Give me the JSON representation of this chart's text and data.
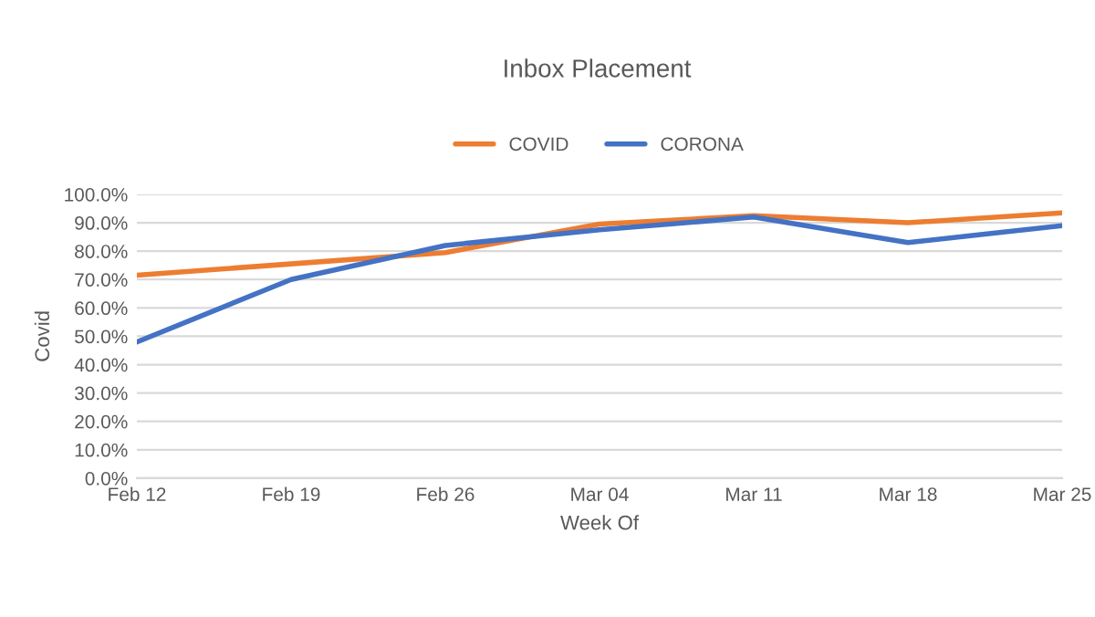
{
  "chart_data": {
    "type": "line",
    "title": "Inbox Placement",
    "xlabel": "Week Of",
    "ylabel": "Covid",
    "categories": [
      "Feb 12",
      "Feb 19",
      "Feb 26",
      "Mar 04",
      "Mar 11",
      "Mar 18",
      "Mar 25"
    ],
    "series": [
      {
        "name": "COVID",
        "color": "#ed7d31",
        "values": [
          71.5,
          75.5,
          79.5,
          89.5,
          92.5,
          90,
          93.5
        ]
      },
      {
        "name": "CORONA",
        "color": "#4472c4",
        "values": [
          48,
          70,
          82,
          87.5,
          92,
          83,
          89
        ]
      }
    ],
    "ylim": [
      0,
      100
    ],
    "yticks": [
      {
        "value": 0,
        "label": "0.0%"
      },
      {
        "value": 10,
        "label": "10.0%"
      },
      {
        "value": 20,
        "label": "20.0%"
      },
      {
        "value": 30,
        "label": "30.0%"
      },
      {
        "value": 40,
        "label": "40.0%"
      },
      {
        "value": 50,
        "label": "50.0%"
      },
      {
        "value": 60,
        "label": "60.0%"
      },
      {
        "value": 70,
        "label": "70.0%"
      },
      {
        "value": 80,
        "label": "80.0%"
      },
      {
        "value": 90,
        "label": "90.0%"
      },
      {
        "value": 100,
        "label": "100.0%"
      }
    ],
    "grid": "y",
    "legend": "top",
    "marker": "none",
    "line_style": "solid"
  }
}
